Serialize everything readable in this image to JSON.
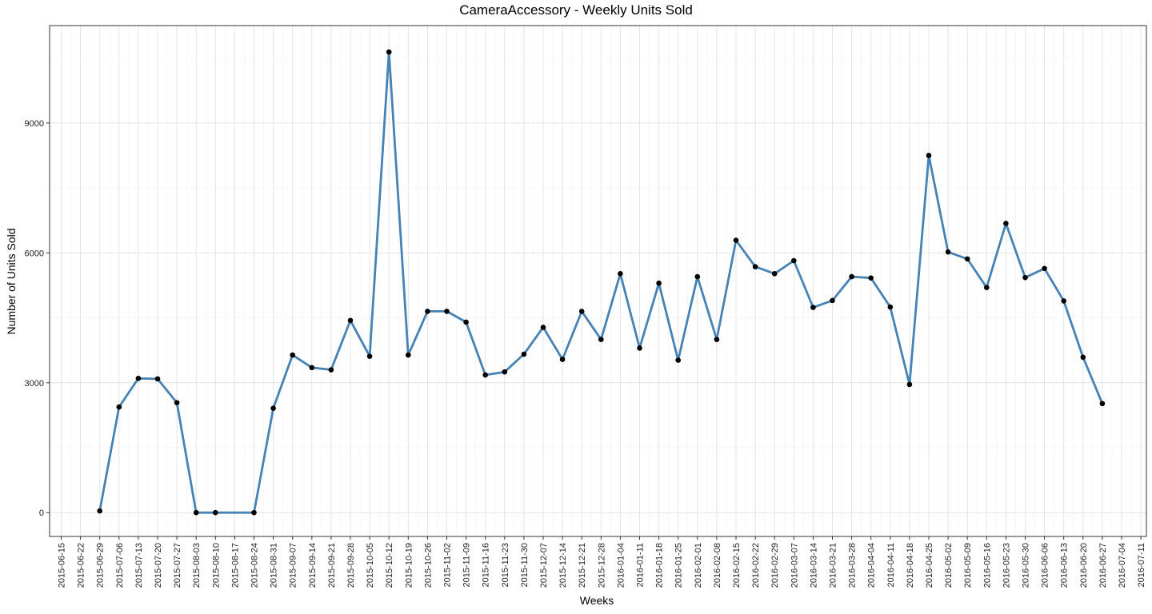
{
  "chart_data": {
    "type": "line",
    "title": "CameraAccessory - Weekly Units Sold",
    "xlabel": "Weeks",
    "ylabel": "Number of Units Sold",
    "ylim": [
      -550,
      11250
    ],
    "y_ticks": [
      0,
      3000,
      6000,
      9000
    ],
    "grid": true,
    "x_tick_labels": [
      "2015-06-15",
      "2015-06-22",
      "2015-06-29",
      "2015-07-06",
      "2015-07-13",
      "2015-07-20",
      "2015-07-27",
      "2015-08-03",
      "2015-08-10",
      "2015-08-17",
      "2015-08-24",
      "2015-08-31",
      "2015-09-07",
      "2015-09-14",
      "2015-09-21",
      "2015-09-28",
      "2015-10-05",
      "2015-10-12",
      "2015-10-19",
      "2015-10-26",
      "2015-11-02",
      "2015-11-09",
      "2015-11-16",
      "2015-11-23",
      "2015-11-30",
      "2015-12-07",
      "2015-12-14",
      "2015-12-21",
      "2015-12-28",
      "2016-01-04",
      "2016-01-11",
      "2016-01-18",
      "2016-01-25",
      "2016-02-01",
      "2016-02-08",
      "2016-02-15",
      "2016-02-22",
      "2016-02-29",
      "2016-03-07",
      "2016-03-14",
      "2016-03-21",
      "2016-03-28",
      "2016-04-04",
      "2016-04-11",
      "2016-04-18",
      "2016-04-25",
      "2016-05-02",
      "2016-05-09",
      "2016-05-16",
      "2016-05-23",
      "2016-05-30",
      "2016-06-06",
      "2016-06-13",
      "2016-06-20",
      "2016-06-27",
      "2016-07-04",
      "2016-07-11"
    ],
    "series": [
      {
        "color": "#4682B4",
        "point_color": "#000000",
        "x": [
          "2015-06-29",
          "2015-07-06",
          "2015-07-13",
          "2015-07-20",
          "2015-07-27",
          "2015-08-03",
          "2015-08-10",
          "2015-08-24",
          "2015-08-31",
          "2015-09-07",
          "2015-09-14",
          "2015-09-21",
          "2015-09-28",
          "2015-10-05",
          "2015-10-12",
          "2015-10-19",
          "2015-10-26",
          "2015-11-02",
          "2015-11-09",
          "2015-11-16",
          "2015-11-23",
          "2015-11-30",
          "2015-12-07",
          "2015-12-14",
          "2015-12-21",
          "2015-12-28",
          "2016-01-04",
          "2016-01-11",
          "2016-01-18",
          "2016-01-25",
          "2016-02-01",
          "2016-02-08",
          "2016-02-15",
          "2016-02-22",
          "2016-02-29",
          "2016-03-07",
          "2016-03-14",
          "2016-03-21",
          "2016-03-28",
          "2016-04-04",
          "2016-04-11",
          "2016-04-18",
          "2016-04-25",
          "2016-05-02",
          "2016-05-09",
          "2016-05-16",
          "2016-05-23",
          "2016-05-30",
          "2016-06-06",
          "2016-06-13",
          "2016-06-20",
          "2016-06-27"
        ],
        "y": [
          40,
          2440,
          3100,
          3090,
          2540,
          0,
          0,
          0,
          2410,
          3640,
          3350,
          3300,
          4440,
          3610,
          10640,
          3640,
          4650,
          4650,
          4400,
          3180,
          3250,
          3660,
          4280,
          3540,
          4650,
          4000,
          5520,
          3800,
          5300,
          3520,
          5450,
          4000,
          6290,
          5680,
          5520,
          5820,
          4740,
          4900,
          5450,
          5420,
          4750,
          2960,
          8250,
          6020,
          5860,
          5200,
          6680,
          5430,
          5640,
          4890,
          3590,
          2520
        ]
      }
    ]
  }
}
